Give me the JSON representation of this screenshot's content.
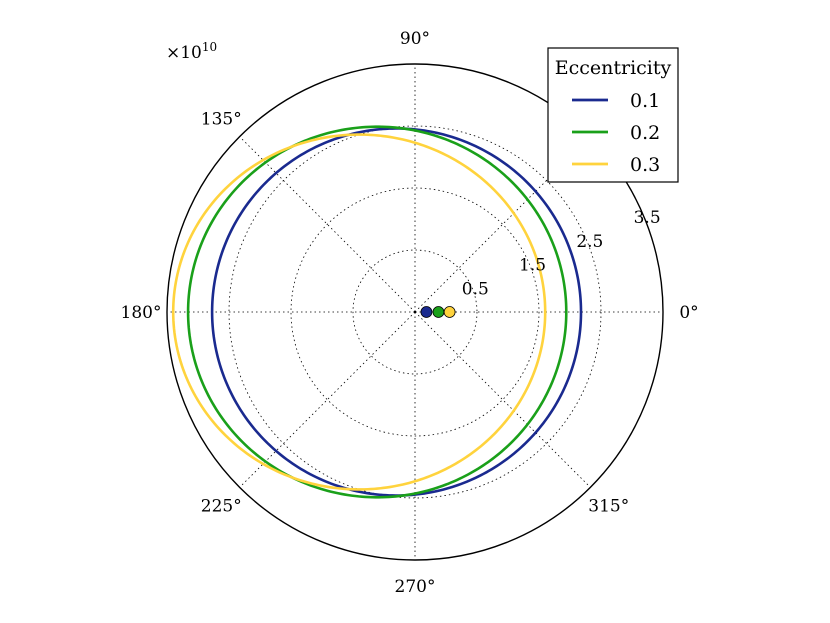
{
  "chart_data": {
    "type": "line",
    "projection": "polar",
    "multiplier": {
      "base": "×10",
      "exponent": "10"
    },
    "r_max": 4.0,
    "r_ticks": [
      {
        "value": 1.0,
        "label": "0.5"
      },
      {
        "value": 2.0,
        "label": "1.5"
      },
      {
        "value": 3.0,
        "label": "2.5"
      },
      {
        "value": 4.0,
        "label": "3.5"
      }
    ],
    "theta_ticks": [
      {
        "deg": 0,
        "label": "0°"
      },
      {
        "deg": 45,
        "label": ""
      },
      {
        "deg": 90,
        "label": "90°"
      },
      {
        "deg": 135,
        "label": "135°"
      },
      {
        "deg": 180,
        "label": "180°"
      },
      {
        "deg": 225,
        "label": "225°"
      },
      {
        "deg": 270,
        "label": "270°"
      },
      {
        "deg": 315,
        "label": "315°"
      }
    ],
    "grid": true,
    "legend": {
      "title": "Eccentricity",
      "position": "top-right"
    },
    "series": [
      {
        "name": "0.1",
        "eccentricity": 0.1,
        "semi_major_axis": 2.975,
        "color": "#1a2a8f"
      },
      {
        "name": "0.2",
        "eccentricity": 0.2,
        "semi_major_axis": 3.05,
        "color": "#1aa01a"
      },
      {
        "name": "0.3",
        "eccentricity": 0.3,
        "semi_major_axis": 3.0,
        "color": "#ffd33d"
      }
    ],
    "focus_marker": {
      "color": "#000000"
    }
  }
}
